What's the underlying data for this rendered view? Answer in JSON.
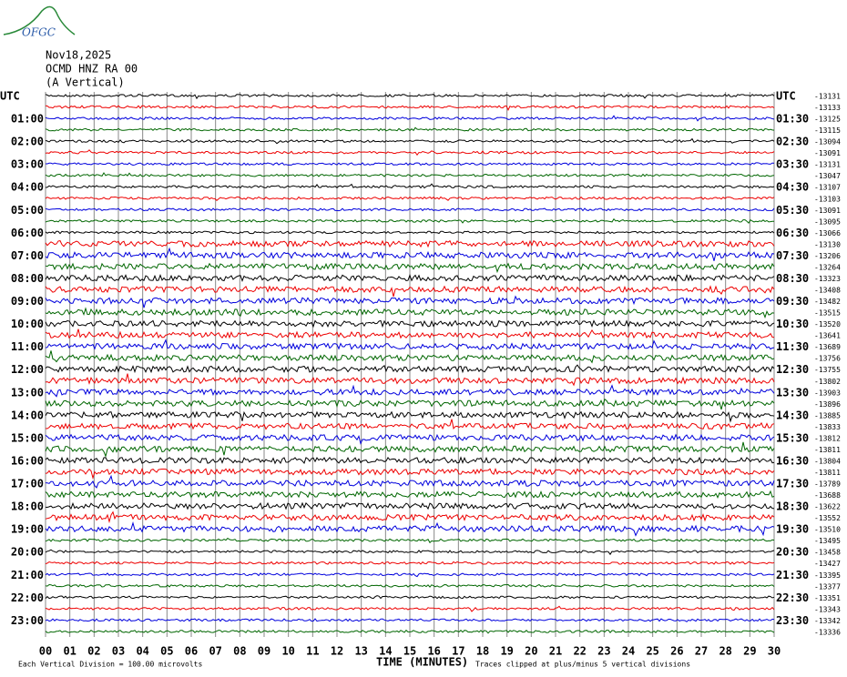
{
  "header": {
    "logo": "OFGC",
    "date": "Nov18,2025",
    "station": "OCMD HNZ RA 00",
    "component": "(A Vertical)"
  },
  "left_labels": [
    "UTC",
    "01:00",
    "02:00",
    "03:00",
    "04:00",
    "05:00",
    "06:00",
    "07:00",
    "08:00",
    "09:00",
    "10:00",
    "11:00",
    "12:00",
    "13:00",
    "14:00",
    "15:00",
    "16:00",
    "17:00",
    "18:00",
    "19:00",
    "20:00",
    "21:00",
    "22:00",
    "23:00"
  ],
  "right_labels": [
    "UTC",
    "01:30",
    "02:30",
    "03:30",
    "04:30",
    "05:30",
    "06:30",
    "07:30",
    "08:30",
    "09:30",
    "10:30",
    "11:30",
    "12:30",
    "13:30",
    "14:30",
    "15:30",
    "16:30",
    "17:30",
    "18:30",
    "19:30",
    "20:30",
    "21:30",
    "22:30",
    "23:30"
  ],
  "offsets": [
    "-13131",
    "-13133",
    "-13125",
    "-13115",
    "-13094",
    "-13091",
    "-13131",
    "-13047",
    "-13107",
    "-13103",
    "-13091",
    "-13095",
    "-13066",
    "-13130",
    "-13206",
    "-13264",
    "-13323",
    "-13408",
    "-13482",
    "-13515",
    "-13520",
    "-13641",
    "-13689",
    "-13756",
    "-13755",
    "-13802",
    "-13903",
    "-13896",
    "-13885",
    "-13833",
    "-13812",
    "-13811",
    "-13804",
    "-13811",
    "-13789",
    "-13688",
    "-13622",
    "-13552",
    "-13510",
    "-13495",
    "-13458",
    "-13427",
    "-13395",
    "-13377",
    "-13351",
    "-13343",
    "-13342",
    "-13336"
  ],
  "x_ticks": [
    "00",
    "01",
    "02",
    "03",
    "04",
    "05",
    "06",
    "07",
    "08",
    "09",
    "10",
    "11",
    "12",
    "13",
    "14",
    "15",
    "16",
    "17",
    "18",
    "19",
    "20",
    "21",
    "22",
    "23",
    "24",
    "25",
    "26",
    "27",
    "28",
    "29",
    "30"
  ],
  "footer": {
    "scale": "Each Vertical Division =  100.00 microvolts",
    "axis_title": "TIME (MINUTES)",
    "clip_note": "Traces clipped at plus/minus 5 vertical divisions"
  }
}
